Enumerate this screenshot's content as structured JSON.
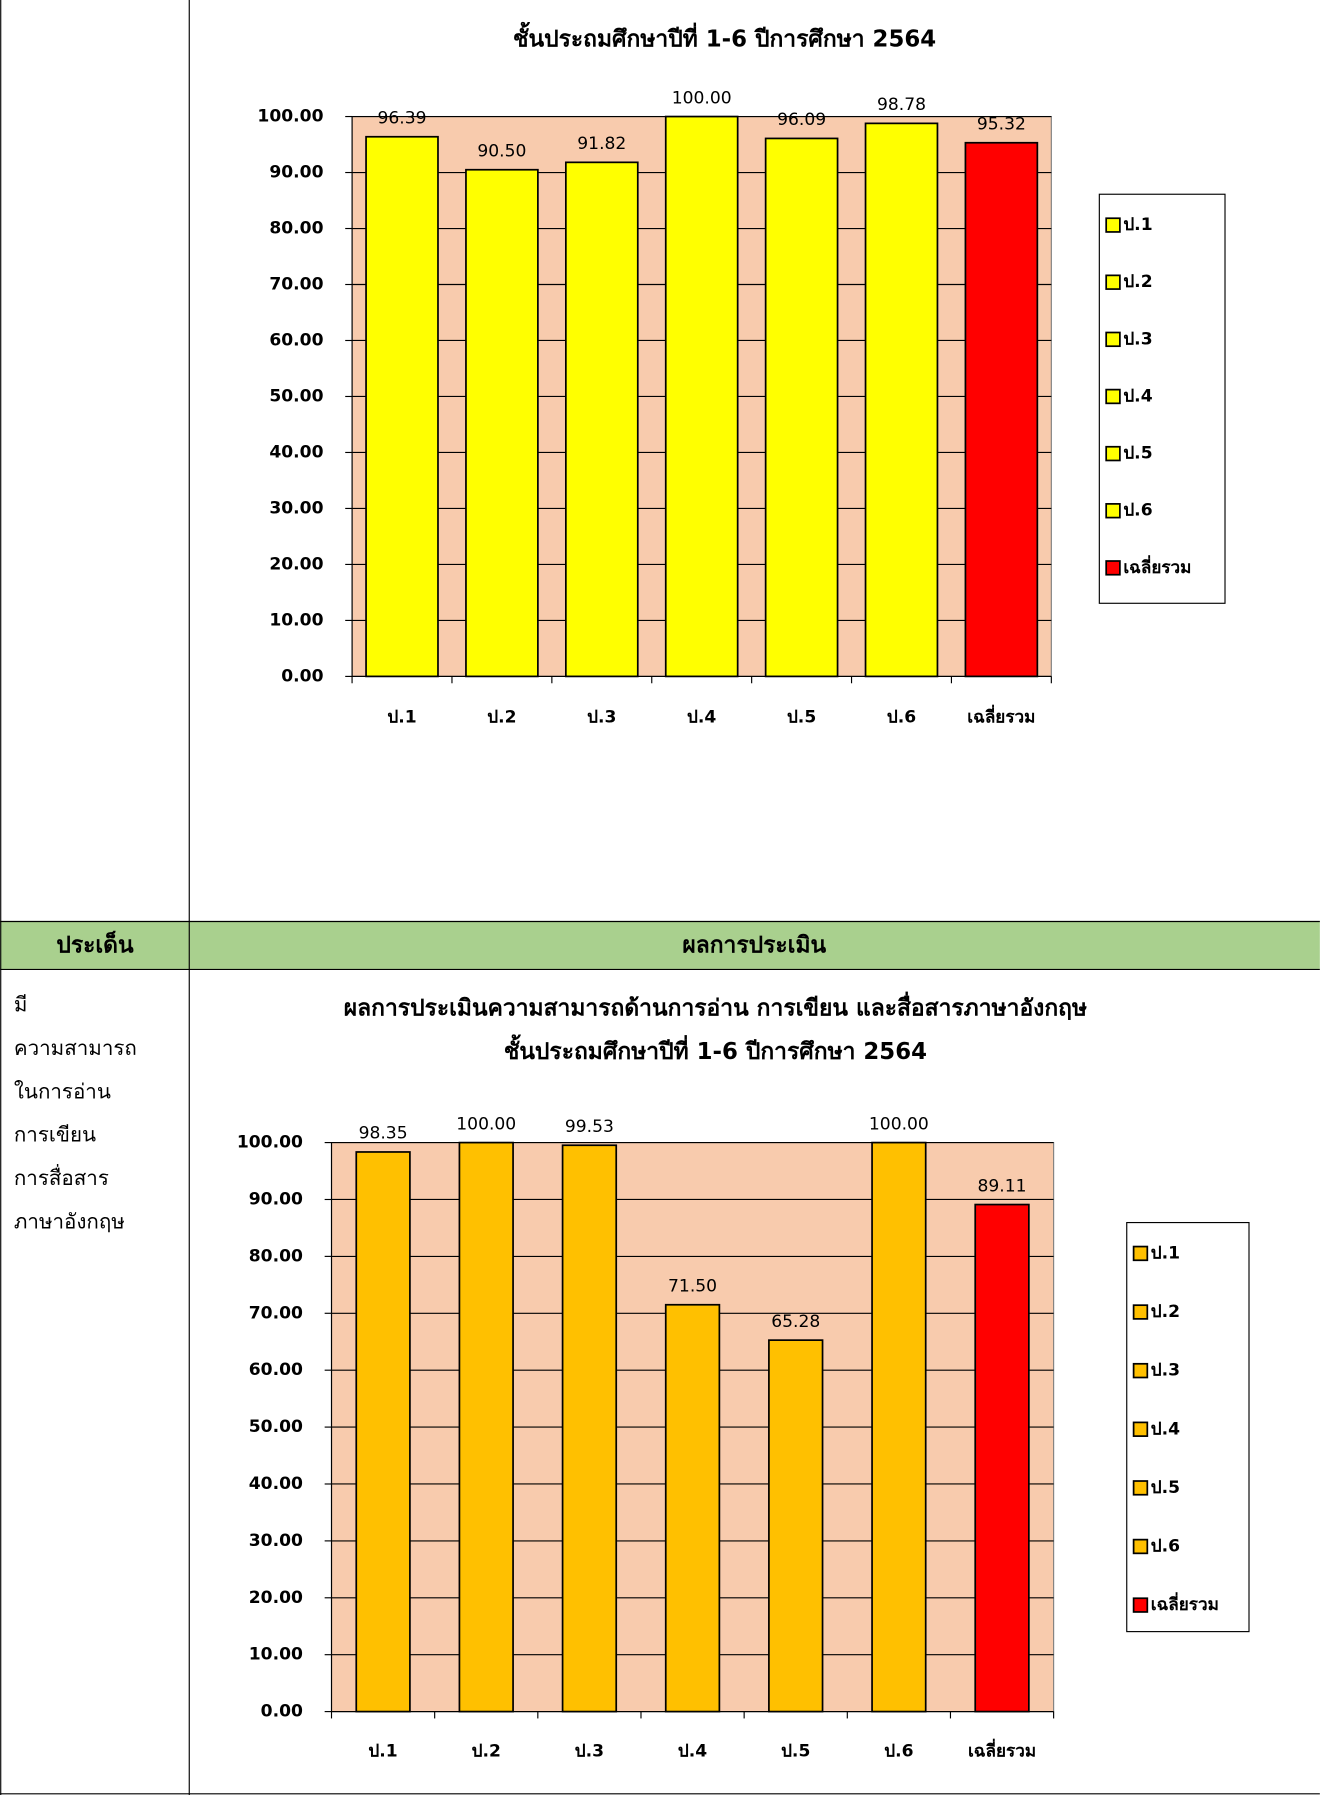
{
  "table": {
    "header": [
      "ประเด็น",
      "ผลการประเมิน"
    ],
    "row_label": [
      "มี",
      "ความสามารถ",
      "ในการอ่าน",
      "การเขียน",
      "การสื่อสาร",
      "ภาษาอังกฤษ"
    ]
  },
  "chart_data": [
    {
      "type": "bar",
      "title": "ชั้นประถมศึกษาปีที่ 1-6 ปีการศึกษา 2564",
      "categories": [
        "ป.1",
        "ป.2",
        "ป.3",
        "ป.4",
        "ป.5",
        "ป.6",
        "เฉลี่ยรวม"
      ],
      "values": [
        96.39,
        90.5,
        91.82,
        100,
        96.09,
        98.78,
        95.32
      ],
      "value_labels": [
        "96.39",
        "90.50",
        "91.82",
        "100.00",
        "96.09",
        "98.78",
        "95.32"
      ],
      "colors": [
        "#ffff00",
        "#ffff00",
        "#ffff00",
        "#ffff00",
        "#ffff00",
        "#ffff00",
        "#ff0000"
      ],
      "plot_color": "#f8cbad",
      "ylim": [
        0,
        100
      ],
      "yticks": [
        {
          "value": 0,
          "label": "0.00"
        },
        {
          "value": 10,
          "label": "10.00"
        },
        {
          "value": 20,
          "label": "20.00"
        },
        {
          "value": 30,
          "label": "30.00"
        },
        {
          "value": 40,
          "label": "40.00"
        },
        {
          "value": 50,
          "label": "50.00"
        },
        {
          "value": 60,
          "label": "60.00"
        },
        {
          "value": 70,
          "label": "70.00"
        },
        {
          "value": 80,
          "label": "80.00"
        },
        {
          "value": 90,
          "label": "90.00"
        },
        {
          "value": 100,
          "label": "100.00"
        }
      ],
      "grid": true,
      "legend": "right"
    },
    {
      "type": "bar",
      "title": "ผลการประเมินความสามารถด้านการอ่าน การเขียน และสื่อสารภาษาอังกฤษ",
      "subtitle": "ชั้นประถมศึกษาปีที่ 1-6 ปีการศึกษา 2564",
      "categories": [
        "ป.1",
        "ป.2",
        "ป.3",
        "ป.4",
        "ป.5",
        "ป.6",
        "เฉลี่ยรวม"
      ],
      "values": [
        98.35,
        100,
        99.53,
        71.5,
        65.28,
        100,
        89.11
      ],
      "value_labels": [
        "98.35",
        "100.00",
        "99.53",
        "71.50",
        "65.28",
        "100.00",
        "89.11"
      ],
      "colors": [
        "#ffc000",
        "#ffc000",
        "#ffc000",
        "#ffc000",
        "#ffc000",
        "#ffc000",
        "#ff0000"
      ],
      "plot_color": "#f8cbad",
      "ylim": [
        0,
        100
      ],
      "yticks": [
        {
          "value": 0,
          "label": "0.00"
        },
        {
          "value": 10,
          "label": "10.00"
        },
        {
          "value": 20,
          "label": "20.00"
        },
        {
          "value": 30,
          "label": "30.00"
        },
        {
          "value": 40,
          "label": "40.00"
        },
        {
          "value": 50,
          "label": "50.00"
        },
        {
          "value": 60,
          "label": "60.00"
        },
        {
          "value": 70,
          "label": "70.00"
        },
        {
          "value": 80,
          "label": "80.00"
        },
        {
          "value": 90,
          "label": "90.00"
        },
        {
          "value": 100,
          "label": "100.00"
        }
      ],
      "grid": true,
      "legend": "right"
    }
  ]
}
